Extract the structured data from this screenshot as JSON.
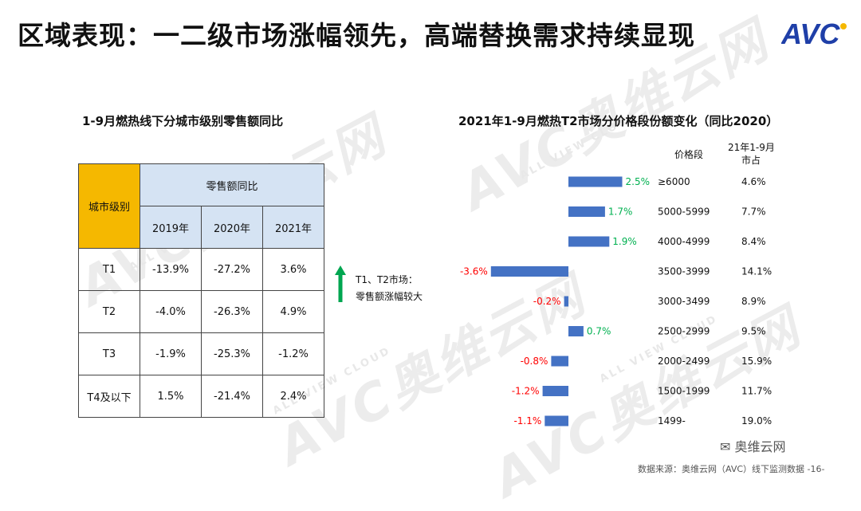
{
  "title": "区域表现：一二级市场涨幅领先，高端替换需求持续显现",
  "logo_text": "AVC",
  "watermark": {
    "text": "AVC奥维云网",
    "sub": "ALL VIEW CLOUD"
  },
  "left_panel": {
    "title": "1-9月燃热线下分城市级别零售额同比",
    "table": {
      "city_header": "城市级别",
      "group_header": "零售额同比",
      "years": [
        "2019年",
        "2020年",
        "2021年"
      ],
      "rows": [
        {
          "city": "T1",
          "values": [
            "-13.9%",
            "-27.2%",
            "3.6%"
          ]
        },
        {
          "city": "T2",
          "values": [
            "-4.0%",
            "-26.3%",
            "4.9%"
          ]
        },
        {
          "city": "T3",
          "values": [
            "-1.9%",
            "-25.3%",
            "-1.2%"
          ]
        },
        {
          "city": "T4及以下",
          "values": [
            "1.5%",
            "-21.4%",
            "2.4%"
          ]
        }
      ]
    },
    "note": {
      "line1": "T1、T2市场：",
      "line2": "零售额涨幅较大",
      "arrow_color": "#00a650"
    }
  },
  "right_panel": {
    "title": "2021年1-9月燃热T2市场分价格段份额变化（同比2020）",
    "col_price": "价格段",
    "col_share_1": "21年1-9月",
    "col_share_2": "市占"
  },
  "chart_data": {
    "type": "bar",
    "orientation": "horizontal",
    "categories": [
      "≥6000",
      "5000-5999",
      "4000-4999",
      "3500-3999",
      "3000-3499",
      "2500-2999",
      "2000-2499",
      "1500-1999",
      "1499-"
    ],
    "values": [
      2.5,
      1.7,
      1.9,
      -3.6,
      -0.2,
      0.7,
      -0.8,
      -1.2,
      -1.1
    ],
    "value_labels": [
      "2.5%",
      "1.7%",
      "1.9%",
      "-3.6%",
      "-0.2%",
      "0.7%",
      "-0.8%",
      "-1.2%",
      "-1.1%"
    ],
    "share_labels": [
      "4.6%",
      "7.7%",
      "8.4%",
      "14.1%",
      "8.9%",
      "9.5%",
      "15.9%",
      "11.7%",
      "19.0%"
    ],
    "bar_color": "#4472c4",
    "positive_label_color": "#00b050",
    "negative_label_color": "#ff0000"
  },
  "footer": {
    "source": "数据来源：奥维云网（AVC）线下监测数据 -16-",
    "wechat": "奥维云网"
  }
}
